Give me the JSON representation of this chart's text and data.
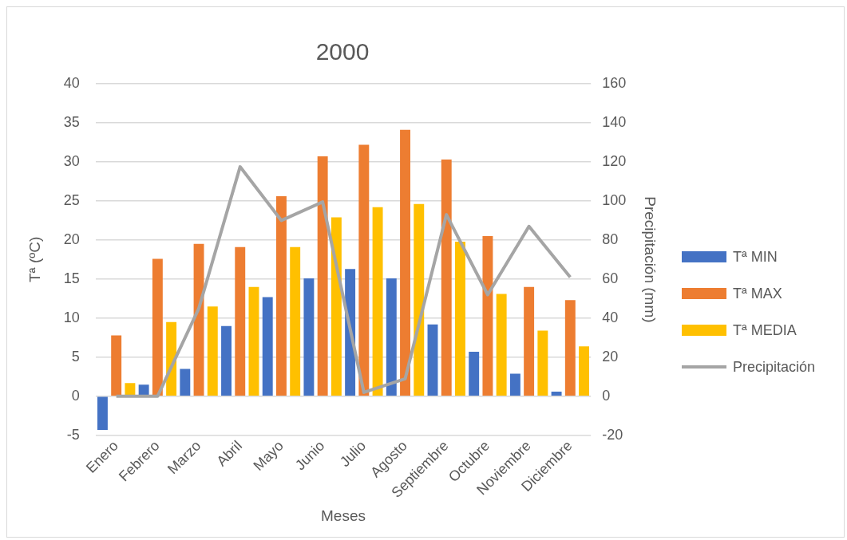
{
  "chart_data": {
    "type": "bar",
    "title": "2000",
    "xlabel": "Meses",
    "ylabel": "Tª (ºC)",
    "y2label": "Precipitación (mm)",
    "categories": [
      "Enero",
      "Febrero",
      "Marzo",
      "Abril",
      "Mayo",
      "Junio",
      "Julio",
      "Agosto",
      "Septiembre",
      "Octubre",
      "Noviembre",
      "Diciembre"
    ],
    "series": [
      {
        "name": "Tª MIN",
        "color": "#4472c4",
        "values": [
          -4.3,
          1.5,
          3.5,
          9.0,
          12.7,
          15.1,
          16.3,
          15.1,
          9.2,
          5.7,
          2.9,
          0.6
        ]
      },
      {
        "name": "Tª MAX",
        "color": "#ed7d31",
        "values": [
          7.8,
          17.6,
          19.5,
          19.1,
          25.6,
          30.7,
          32.2,
          34.1,
          30.3,
          20.5,
          14.0,
          12.3
        ]
      },
      {
        "name": "Tª MEDIA",
        "color": "#ffc000",
        "values": [
          1.7,
          9.5,
          11.5,
          14.0,
          19.1,
          22.9,
          24.2,
          24.6,
          19.8,
          13.1,
          8.4,
          6.4
        ]
      },
      {
        "name": "Precipitación",
        "type": "line",
        "axis": "y2",
        "color": "#a5a5a5",
        "values": [
          0,
          0,
          45,
          117.5,
          90,
          99.5,
          2,
          9,
          93,
          52,
          87,
          61
        ]
      }
    ],
    "ylim": [
      -5,
      40
    ],
    "yticks": [
      -5,
      0,
      5,
      10,
      15,
      20,
      25,
      30,
      35,
      40
    ],
    "y2lim": [
      -20,
      160
    ],
    "y2ticks": [
      -20,
      0,
      20,
      40,
      60,
      80,
      100,
      120,
      140,
      160
    ],
    "grid": "y",
    "legend": "right",
    "marker": "none"
  }
}
